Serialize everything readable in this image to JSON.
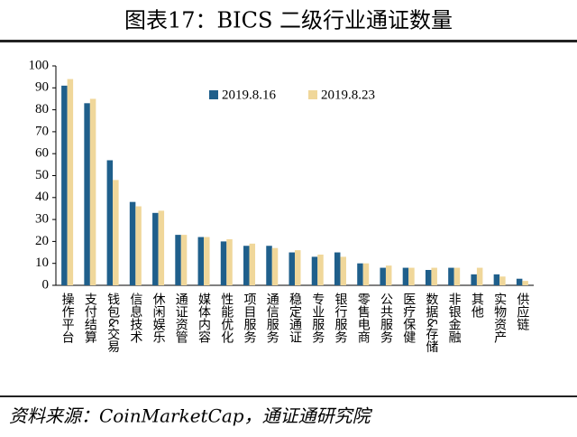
{
  "chart_data": {
    "type": "bar",
    "title": "图表17：BICS 二级行业通证数量",
    "source": "资料来源：CoinMarketCap，通证通研究院",
    "categories": [
      "操作平台",
      "支付结算",
      "钱包&交易",
      "信息技术",
      "休闲娱乐",
      "通证资管",
      "媒体内容",
      "性能优化",
      "项目服务",
      "通信服务",
      "稳定通证",
      "专业服务",
      "银行服务",
      "零售电商",
      "公共服务",
      "医疗保健",
      "数据&存储",
      "非银金融",
      "其他",
      "实物资产",
      "供应链"
    ],
    "series": [
      {
        "name": "2019.8.16",
        "color": "#1f5f8b",
        "values": [
          91,
          83,
          57,
          38,
          33,
          23,
          22,
          20,
          18,
          18,
          15,
          13,
          15,
          10,
          8,
          8,
          7,
          8,
          5,
          5,
          3
        ]
      },
      {
        "name": "2019.8.23",
        "color": "#f0d79a",
        "values": [
          94,
          85,
          48,
          36,
          34,
          23,
          22,
          21,
          19,
          17,
          16,
          14,
          13,
          10,
          9,
          8,
          8,
          8,
          8,
          4,
          2
        ]
      }
    ],
    "ylim": [
      0,
      100
    ],
    "yticks": [
      0,
      10,
      20,
      30,
      40,
      50,
      60,
      70,
      80,
      90,
      100
    ]
  }
}
